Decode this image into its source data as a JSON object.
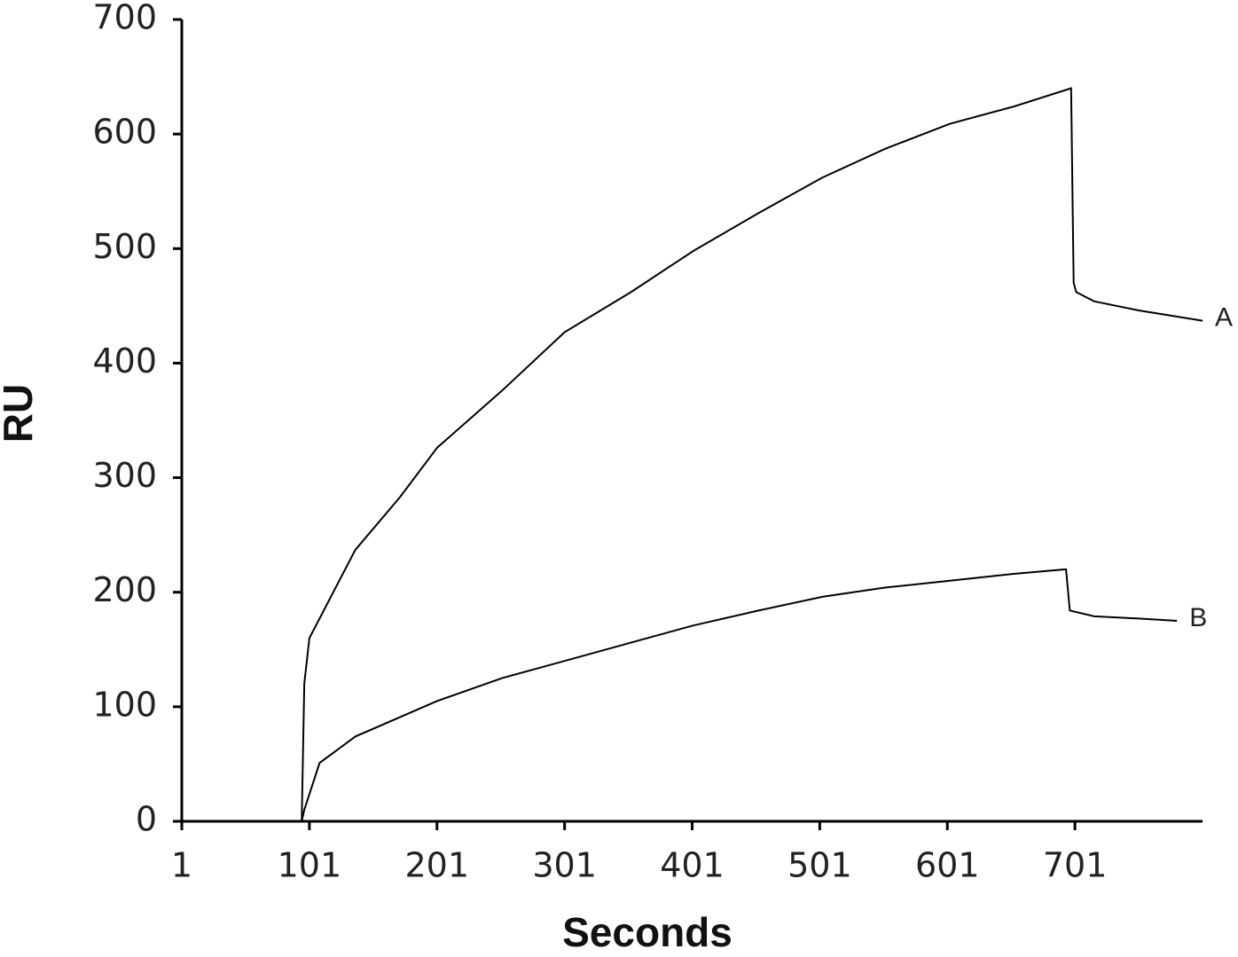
{
  "chart_data": {
    "type": "line",
    "x_label": "Seconds",
    "y_label": "RU",
    "xlim": [
      1,
      801
    ],
    "xticks": [
      1,
      101,
      201,
      301,
      401,
      501,
      601,
      701
    ],
    "ylim": [
      0,
      700
    ],
    "yticks": [
      0,
      100,
      200,
      300,
      400,
      500,
      600,
      700
    ],
    "series": [
      {
        "name": "A",
        "color": "#000000",
        "x": [
          1,
          95,
          97,
          101,
          137,
          172,
          201,
          252,
          301,
          353,
          402,
          453,
          503,
          552,
          603,
          653,
          698,
          700,
          702,
          716,
          751,
          801
        ],
        "values": [
          0,
          0,
          120,
          160,
          237,
          283,
          326,
          376,
          427,
          462,
          498,
          531,
          562,
          587,
          609,
          624,
          640,
          470,
          462,
          454,
          446,
          437
        ]
      },
      {
        "name": "B",
        "color": "#000000",
        "x": [
          1,
          95,
          97,
          109,
          137,
          201,
          252,
          301,
          353,
          402,
          453,
          503,
          552,
          603,
          653,
          694,
          697,
          716,
          751,
          781
        ],
        "values": [
          0,
          0,
          10,
          51,
          74,
          105,
          125,
          140,
          156,
          171,
          184,
          196,
          204,
          210,
          216,
          220,
          184,
          179,
          177,
          175
        ]
      }
    ]
  }
}
